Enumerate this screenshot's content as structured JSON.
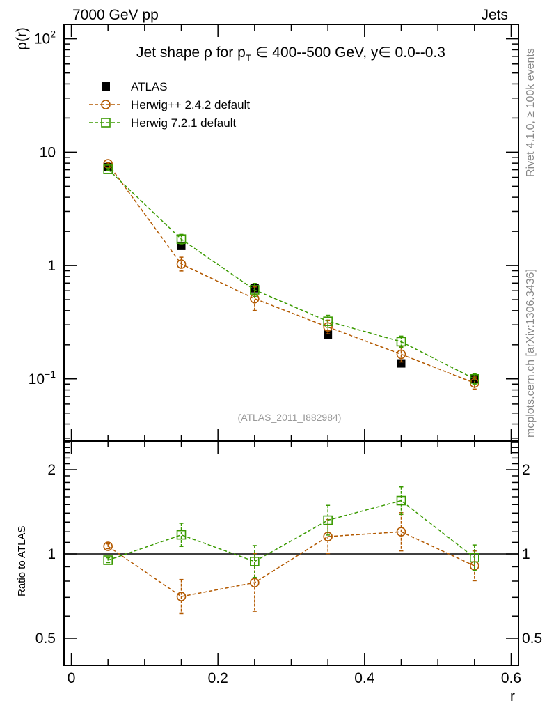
{
  "header": {
    "left": "7000 GeV pp",
    "right": "Jets"
  },
  "side_text": {
    "rivet": "Rivet 4.1.0, ≥ 100k events",
    "mcplots": "mcplots.cern.ch [arXiv:1306.3436]"
  },
  "analysis_id": "(ATLAS_2011_I882984)",
  "colors": {
    "atlas": "#000000",
    "herwigpp": "#b35900",
    "herwig7": "#3a9a00"
  },
  "chart_data": [
    {
      "type": "scatter",
      "title": "Jet shape ρ for p_T ∈ 400--500 GeV, y∈ 0.0--0.3",
      "title_parts": {
        "a": "Jet shape ρ for p",
        "sub": "T",
        "b": " ∈ 400--500 GeV, y∈ 0.0--0.3"
      },
      "ylabel": "ρ(r)",
      "yscale": "log",
      "ylim": [
        0.0283,
        134
      ],
      "xlim": [
        -0.01,
        0.61
      ],
      "yticks": [
        {
          "v": 100,
          "base": "10",
          "exp": "2"
        },
        {
          "v": 10,
          "base": "10",
          "exp": ""
        },
        {
          "v": 1,
          "base": "1",
          "exp": ""
        },
        {
          "v": 0.1,
          "base": "10",
          "exp": "−1"
        }
      ],
      "legend_position": "top-left",
      "x": [
        0.05,
        0.15,
        0.25,
        0.35,
        0.45,
        0.55
      ],
      "series": [
        {
          "name": "ATLAS",
          "key": "atlas",
          "marker": "filled-square",
          "values": [
            7.38,
            1.49,
            0.63,
            0.246,
            0.137,
            0.1
          ],
          "rel_err": [
            1.02,
            1.02,
            1.02,
            1.03,
            1.03,
            1.03
          ]
        },
        {
          "name": "Herwig++ 2.4.2 default",
          "key": "herwigpp",
          "marker": "open-circle",
          "values": [
            7.9,
            1.03,
            0.51,
            0.287,
            0.165,
            0.092
          ],
          "rel_err": [
            1.02,
            1.15,
            1.27,
            1.15,
            1.17,
            1.13
          ]
        },
        {
          "name": "Herwig 7.2.1 default",
          "key": "herwig7",
          "marker": "open-square",
          "values": [
            7.07,
            1.71,
            0.61,
            0.322,
            0.213,
            0.1
          ],
          "rel_err": [
            1.02,
            1.1,
            1.14,
            1.13,
            1.12,
            1.11
          ]
        }
      ]
    },
    {
      "type": "scatter",
      "ylabel": "Ratio to ATLAS",
      "xlabel": "r",
      "yscale": "log",
      "ylim": [
        0.4,
        2.53
      ],
      "xlim": [
        -0.01,
        0.61
      ],
      "yticks": [
        {
          "v": 2,
          "label": "2"
        },
        {
          "v": 1,
          "label": "1"
        },
        {
          "v": 0.5,
          "label": "0.5"
        }
      ],
      "xticks": [
        {
          "v": 0,
          "label": "0"
        },
        {
          "v": 0.2,
          "label": "0.2"
        },
        {
          "v": 0.4,
          "label": "0.4"
        },
        {
          "v": 0.6,
          "label": "0.6"
        }
      ],
      "reference_line": 1,
      "x": [
        0.05,
        0.15,
        0.25,
        0.35,
        0.45,
        0.55
      ],
      "series": [
        {
          "name": "Herwig++ 2.4.2 default",
          "key": "herwigpp",
          "marker": "open-circle",
          "values": [
            1.065,
            0.705,
            0.79,
            1.154,
            1.2,
            0.907
          ],
          "rel_err": [
            1.02,
            1.15,
            1.27,
            1.15,
            1.17,
            1.13
          ]
        },
        {
          "name": "Herwig 7.2.1 default",
          "key": "herwig7",
          "marker": "open-square",
          "values": [
            0.95,
            1.17,
            0.94,
            1.32,
            1.55,
            0.97
          ],
          "rel_err": [
            1.02,
            1.1,
            1.14,
            1.13,
            1.12,
            1.11
          ]
        }
      ]
    }
  ]
}
